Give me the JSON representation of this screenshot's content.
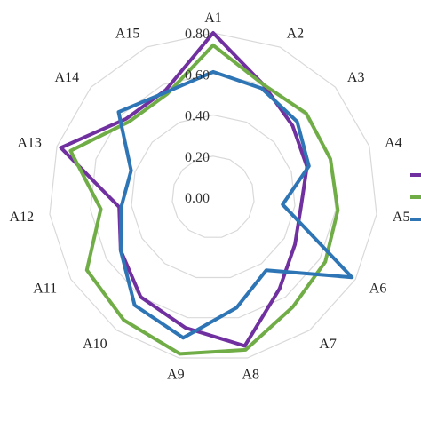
{
  "chart_data": {
    "type": "radar",
    "categories": [
      "A1",
      "A2",
      "A3",
      "A4",
      "A5",
      "A6",
      "A7",
      "A8",
      "A9",
      "A10",
      "A11",
      "A12",
      "A13",
      "A14",
      "A15"
    ],
    "rlim": [
      0,
      0.8
    ],
    "ticks": [
      "0.00",
      "0.20",
      "0.40",
      "0.60",
      "0.80"
    ],
    "tick_values": [
      0,
      0.2,
      0.4,
      0.6,
      0.8
    ],
    "grid": true,
    "legend": "right (partially visible, labels not shown)",
    "series": [
      {
        "color": "#7030a0",
        "values": [
          0.8,
          0.6,
          0.52,
          0.48,
          0.43,
          0.46,
          0.55,
          0.74,
          0.65,
          0.6,
          0.52,
          0.46,
          0.78,
          0.57,
          0.57
        ]
      },
      {
        "color": "#70ad47",
        "values": [
          0.74,
          0.6,
          0.61,
          0.6,
          0.61,
          0.63,
          0.66,
          0.76,
          0.78,
          0.74,
          0.71,
          0.55,
          0.73,
          0.55,
          0.55
        ]
      },
      {
        "color": "#2e75b6",
        "values": [
          0.61,
          0.58,
          0.55,
          0.49,
          0.34,
          0.78,
          0.44,
          0.55,
          0.7,
          0.65,
          0.52,
          0.45,
          0.42,
          0.62,
          0.56
        ]
      }
    ]
  }
}
